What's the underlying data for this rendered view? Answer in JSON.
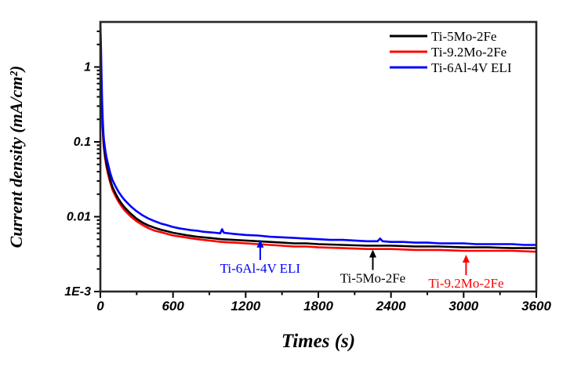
{
  "figure": {
    "background": "#ffffff",
    "frame_color": "#262626",
    "tick_color": "#000000"
  },
  "axes": {
    "x": {
      "major_ticks": [
        0,
        600,
        1200,
        1800,
        2400,
        3000,
        3600
      ],
      "minor_ticks": [
        300,
        900,
        1500,
        2100,
        2700,
        3300
      ]
    },
    "y": {
      "scale": "log",
      "major_ticks": [
        {
          "value": 0.001,
          "label": "1E-3"
        },
        {
          "value": 0.01,
          "label": "0.01"
        },
        {
          "value": 0.1,
          "label": "0.1"
        },
        {
          "value": 1,
          "label": "1"
        }
      ]
    }
  },
  "legend": {
    "items": [
      {
        "label": "Ti-5Mo-2Fe",
        "color": "#000000"
      },
      {
        "label": "Ti-9.2Mo-2Fe",
        "color": "#ff0000"
      },
      {
        "label": "Ti-6Al-4V ELI",
        "color": "#0000ff"
      }
    ]
  },
  "annotations": [
    {
      "label": "Ti-6Al-4V ELI",
      "color": "#0000ff",
      "series": "Ti-6Al-4V ELI",
      "t": 1320
    },
    {
      "label": "Ti-5Mo-2Fe",
      "color": "#000000",
      "series": "Ti-5Mo-2Fe",
      "t": 2250
    },
    {
      "label": "Ti-9.2Mo-2Fe",
      "color": "#ff0000",
      "series": "Ti-9.2Mo-2Fe",
      "t": 3020
    }
  ],
  "chart_data": {
    "type": "line",
    "title": "",
    "xlabel": "Times (s)",
    "ylabel": "Current density (mA/cm²)",
    "x_range": [
      0,
      3600
    ],
    "y_scale": "log",
    "y_range": [
      0.001,
      4
    ],
    "legend_position": "top-right",
    "grid": false,
    "series": [
      {
        "name": "Ti-9.2Mo-2Fe",
        "color": "#ff0000",
        "width": 2.6,
        "points": [
          [
            0,
            0.92
          ],
          [
            5,
            0.6
          ],
          [
            10,
            0.38
          ],
          [
            15,
            0.23
          ],
          [
            20,
            0.145
          ],
          [
            25,
            0.1
          ],
          [
            30,
            0.081
          ],
          [
            40,
            0.059
          ],
          [
            50,
            0.047
          ],
          [
            60,
            0.039
          ],
          [
            80,
            0.029
          ],
          [
            100,
            0.023
          ],
          [
            125,
            0.0188
          ],
          [
            150,
            0.0158
          ],
          [
            175,
            0.0138
          ],
          [
            200,
            0.0122
          ],
          [
            250,
            0.0101
          ],
          [
            300,
            0.0087
          ],
          [
            350,
            0.0077
          ],
          [
            400,
            0.007
          ],
          [
            450,
            0.0065
          ],
          [
            500,
            0.0062
          ],
          [
            550,
            0.0059
          ],
          [
            600,
            0.0056
          ],
          [
            700,
            0.0053
          ],
          [
            800,
            0.005
          ],
          [
            900,
            0.0048
          ],
          [
            1000,
            0.0046
          ],
          [
            1100,
            0.0045
          ],
          [
            1200,
            0.0044
          ],
          [
            1300,
            0.0043
          ],
          [
            1400,
            0.0042
          ],
          [
            1500,
            0.0041
          ],
          [
            1600,
            0.004
          ],
          [
            1700,
            0.004
          ],
          [
            1800,
            0.0039
          ],
          [
            2000,
            0.0038
          ],
          [
            2200,
            0.0037
          ],
          [
            2400,
            0.0037
          ],
          [
            2600,
            0.0036
          ],
          [
            2800,
            0.0036
          ],
          [
            3000,
            0.0035
          ],
          [
            3200,
            0.0035
          ],
          [
            3400,
            0.0035
          ],
          [
            3600,
            0.0034
          ]
        ]
      },
      {
        "name": "Ti-5Mo-2Fe",
        "color": "#000000",
        "width": 2.6,
        "points": [
          [
            0,
            3.2
          ],
          [
            5,
            1.2
          ],
          [
            10,
            0.52
          ],
          [
            15,
            0.26
          ],
          [
            20,
            0.155
          ],
          [
            25,
            0.108
          ],
          [
            30,
            0.088
          ],
          [
            40,
            0.064
          ],
          [
            50,
            0.051
          ],
          [
            60,
            0.043
          ],
          [
            80,
            0.0315
          ],
          [
            100,
            0.025
          ],
          [
            125,
            0.0205
          ],
          [
            150,
            0.0172
          ],
          [
            175,
            0.015
          ],
          [
            200,
            0.0133
          ],
          [
            250,
            0.011
          ],
          [
            300,
            0.0094
          ],
          [
            350,
            0.0083
          ],
          [
            400,
            0.0076
          ],
          [
            450,
            0.0071
          ],
          [
            500,
            0.0067
          ],
          [
            550,
            0.0064
          ],
          [
            600,
            0.0061
          ],
          [
            700,
            0.0057
          ],
          [
            800,
            0.0054
          ],
          [
            900,
            0.0052
          ],
          [
            1000,
            0.005
          ],
          [
            1100,
            0.0049
          ],
          [
            1200,
            0.0048
          ],
          [
            1300,
            0.0047
          ],
          [
            1400,
            0.0046
          ],
          [
            1500,
            0.0045
          ],
          [
            1600,
            0.0044
          ],
          [
            1700,
            0.0044
          ],
          [
            1800,
            0.0043
          ],
          [
            2000,
            0.0042
          ],
          [
            2200,
            0.0041
          ],
          [
            2400,
            0.0041
          ],
          [
            2600,
            0.004
          ],
          [
            2800,
            0.004
          ],
          [
            3000,
            0.0039
          ],
          [
            3200,
            0.0039
          ],
          [
            3400,
            0.0038
          ],
          [
            3600,
            0.0038
          ]
        ]
      },
      {
        "name": "Ti-6Al-4V ELI",
        "color": "#0000ff",
        "width": 2.6,
        "points": [
          [
            0,
            3.8
          ],
          [
            5,
            1.8
          ],
          [
            10,
            0.75
          ],
          [
            15,
            0.33
          ],
          [
            20,
            0.19
          ],
          [
            25,
            0.13
          ],
          [
            30,
            0.105
          ],
          [
            40,
            0.078
          ],
          [
            50,
            0.063
          ],
          [
            60,
            0.053
          ],
          [
            80,
            0.039
          ],
          [
            100,
            0.031
          ],
          [
            125,
            0.0255
          ],
          [
            150,
            0.0215
          ],
          [
            175,
            0.0188
          ],
          [
            200,
            0.0167
          ],
          [
            250,
            0.0138
          ],
          [
            300,
            0.0118
          ],
          [
            350,
            0.0104
          ],
          [
            400,
            0.0094
          ],
          [
            450,
            0.0087
          ],
          [
            500,
            0.0081
          ],
          [
            550,
            0.0077
          ],
          [
            600,
            0.0073
          ],
          [
            650,
            0.007
          ],
          [
            700,
            0.0068
          ],
          [
            750,
            0.0066
          ],
          [
            800,
            0.0065
          ],
          [
            850,
            0.0063
          ],
          [
            900,
            0.0062
          ],
          [
            950,
            0.0061
          ],
          [
            990,
            0.006
          ],
          [
            1005,
            0.0068
          ],
          [
            1020,
            0.0061
          ],
          [
            1100,
            0.0059
          ],
          [
            1200,
            0.0057
          ],
          [
            1300,
            0.0056
          ],
          [
            1400,
            0.0054
          ],
          [
            1500,
            0.0053
          ],
          [
            1600,
            0.0052
          ],
          [
            1700,
            0.0051
          ],
          [
            1800,
            0.005
          ],
          [
            1900,
            0.0049
          ],
          [
            2000,
            0.0049
          ],
          [
            2100,
            0.0048
          ],
          [
            2200,
            0.0047
          ],
          [
            2290,
            0.0047
          ],
          [
            2310,
            0.0051
          ],
          [
            2330,
            0.0047
          ],
          [
            2400,
            0.0046
          ],
          [
            2500,
            0.0046
          ],
          [
            2600,
            0.0045
          ],
          [
            2700,
            0.0045
          ],
          [
            2800,
            0.0044
          ],
          [
            2900,
            0.0044
          ],
          [
            3000,
            0.0044
          ],
          [
            3100,
            0.0043
          ],
          [
            3200,
            0.0043
          ],
          [
            3300,
            0.0043
          ],
          [
            3400,
            0.0043
          ],
          [
            3500,
            0.0042
          ],
          [
            3600,
            0.0042
          ]
        ]
      }
    ]
  }
}
